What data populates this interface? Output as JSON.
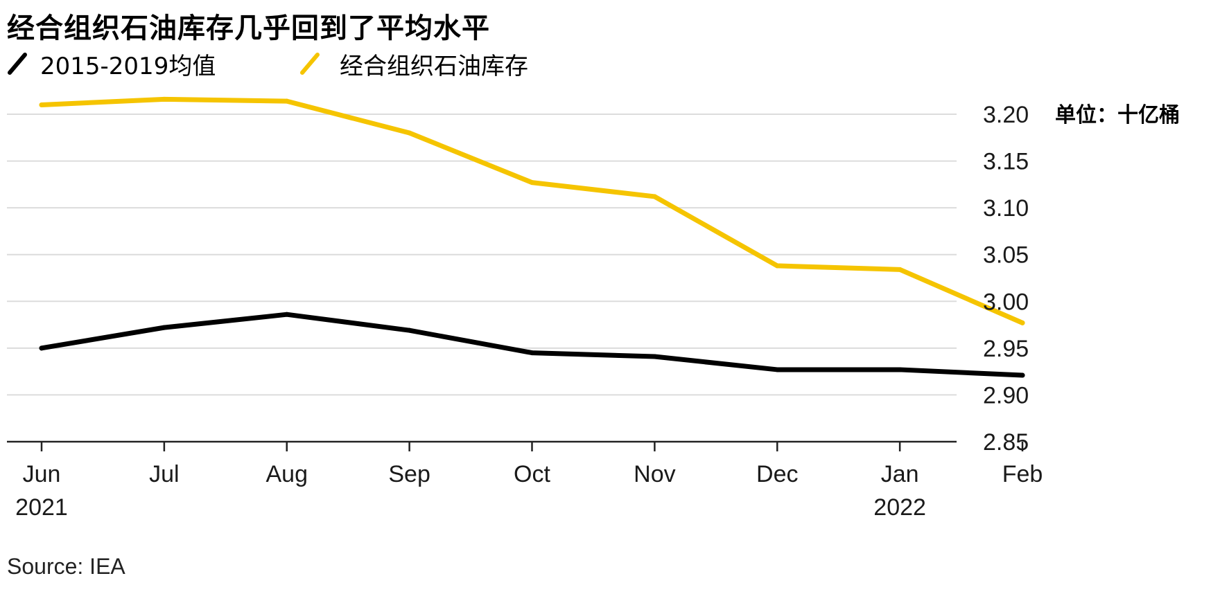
{
  "header": {
    "title": "经合组织石油库存几乎回到了平均水平"
  },
  "legend": {
    "items": [
      {
        "label": "2015-2019均值",
        "color": "#000000"
      },
      {
        "label": "经合组织石油库存",
        "color": "#f5c400"
      }
    ]
  },
  "footer": {
    "source": "Source: IEA"
  },
  "chart_data": {
    "type": "line",
    "title": "经合组织石油库存几乎回到了平均水平",
    "ylabel": "单位：十亿桶",
    "y_unit_label": "单位：十亿桶",
    "ylim": [
      2.85,
      3.2
    ],
    "yticks": [
      2.85,
      2.9,
      2.95,
      3.0,
      3.05,
      3.1,
      3.15,
      3.2
    ],
    "ytick_labels": [
      "2.85",
      "2.90",
      "2.95",
      "3.00",
      "3.05",
      "3.10",
      "3.15",
      "3.20"
    ],
    "y_axis_position": "right",
    "grid": true,
    "legend_position": "top-left",
    "categories": [
      "Jun",
      "Jul",
      "Aug",
      "Sep",
      "Oct",
      "Nov",
      "Dec",
      "Jan",
      "Feb"
    ],
    "year_labels": [
      "2021",
      "",
      "",
      "",
      "",
      "",
      "",
      "2022",
      ""
    ],
    "series": [
      {
        "name": "2015-2019均值",
        "color": "#000000",
        "values": [
          2.95,
          2.972,
          2.986,
          2.969,
          2.945,
          2.941,
          2.927,
          2.927,
          2.921
        ]
      },
      {
        "name": "经合组织石油库存",
        "color": "#f5c400",
        "values": [
          3.21,
          3.216,
          3.214,
          3.18,
          3.127,
          3.112,
          3.038,
          3.034,
          2.977
        ]
      }
    ]
  }
}
